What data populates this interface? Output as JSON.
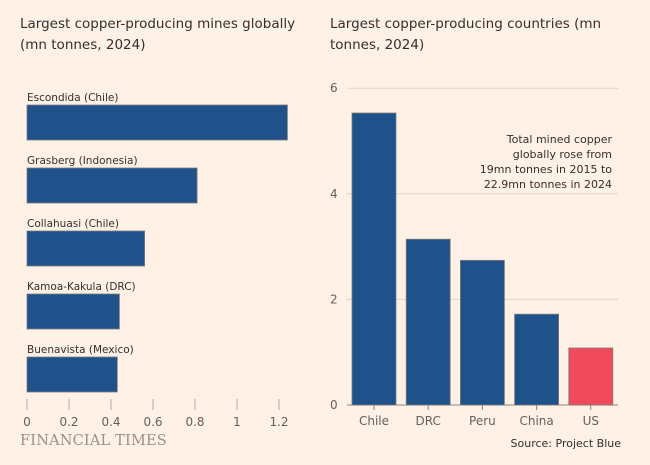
{
  "brand": "FINANCIAL TIMES",
  "source": "Source: Project Blue",
  "colors": {
    "background": "#fff1e5",
    "bar": "#1f528a",
    "highlight": "#f04b5c",
    "grid": "#e0d4c9"
  },
  "chart_data": [
    {
      "type": "bar",
      "orientation": "horizontal",
      "title": "Largest copper-producing mines globally (mn tonnes, 2024)",
      "categories": [
        "Escondida (Chile)",
        "Grasberg (Indonesia)",
        "Collahuasi (Chile)",
        "Kamoa-Kakula (DRC)",
        "Buenavista (Mexico)"
      ],
      "values": [
        1.24,
        0.81,
        0.56,
        0.44,
        0.43
      ],
      "xlim": [
        0,
        1.2
      ],
      "xticks": [
        "0",
        "0.2",
        "0.4",
        "0.6",
        "0.8",
        "1",
        "1.2"
      ],
      "grid": false
    },
    {
      "type": "bar",
      "orientation": "vertical",
      "title": "Largest copper-producing countries (mn tonnes, 2024)",
      "categories": [
        "Chile",
        "DRC",
        "Peru",
        "China",
        "US"
      ],
      "values": [
        5.53,
        3.14,
        2.74,
        1.72,
        1.08
      ],
      "highlight": "US",
      "ylim": [
        0,
        6
      ],
      "yticks": [
        "0",
        "2",
        "4",
        "6"
      ],
      "grid": true,
      "annotation": [
        "Total mined copper",
        "globally rose from",
        "19mn tonnes in 2015 to",
        "22.9mn tonnes in 2024"
      ]
    }
  ]
}
